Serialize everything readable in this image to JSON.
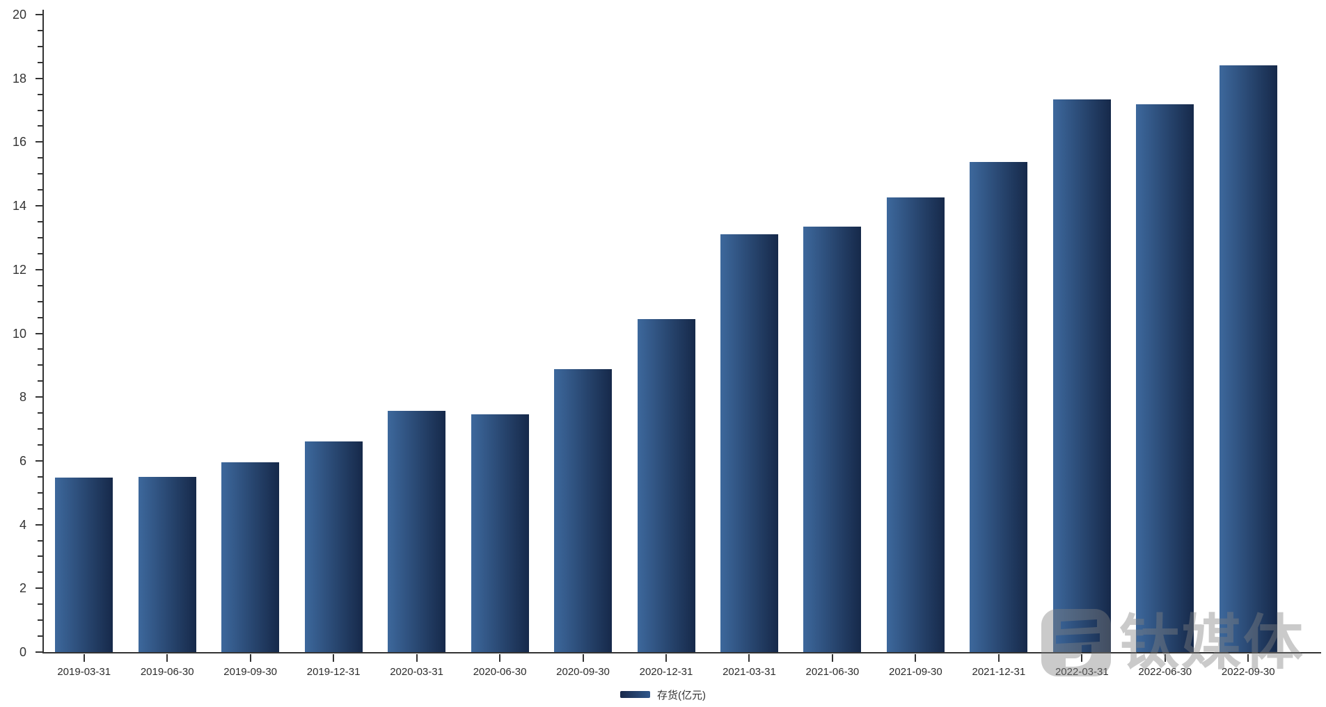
{
  "chart_data": {
    "type": "bar",
    "title": "",
    "xlabel": "",
    "ylabel": "",
    "categories": [
      "2019-03-31",
      "2019-06-30",
      "2019-09-30",
      "2019-12-31",
      "2020-03-31",
      "2020-06-30",
      "2020-09-30",
      "2020-12-31",
      "2021-03-31",
      "2021-06-30",
      "2021-09-30",
      "2021-12-31",
      "2022-03-31",
      "2022-06-30",
      "2022-09-30"
    ],
    "series": [
      {
        "name": "存货(亿元)",
        "values": [
          5.48,
          5.5,
          5.95,
          6.61,
          7.56,
          7.45,
          8.88,
          10.44,
          13.11,
          13.35,
          14.26,
          15.37,
          17.34,
          17.19,
          18.41
        ]
      }
    ],
    "ylim": [
      0,
      20
    ],
    "y_major_tick_step": 2,
    "y_minor_tick_step": 0.5,
    "y_tick_labels": [
      "0",
      "2",
      "4",
      "6",
      "8",
      "10",
      "12",
      "14",
      "16",
      "18",
      "20"
    ],
    "grid": false,
    "legend_position": "bottom-center",
    "bar_gradient": [
      "#3d689c",
      "#16294a"
    ],
    "legend_swatch_gradient": [
      "#18294b",
      "#2f578a"
    ],
    "axis_color": "#333333",
    "label_color": "#2b2b2b"
  },
  "legend": {
    "label": "存货(亿元)"
  },
  "watermark": {
    "text": "钛媒体",
    "logo": "tmtpost-logo"
  },
  "colors": {
    "background": "#ffffff",
    "bar_light": "#3d689c",
    "bar_dark": "#16294a",
    "axis": "#333333",
    "watermark_gray": "rgba(128,128,128,0.42)"
  }
}
